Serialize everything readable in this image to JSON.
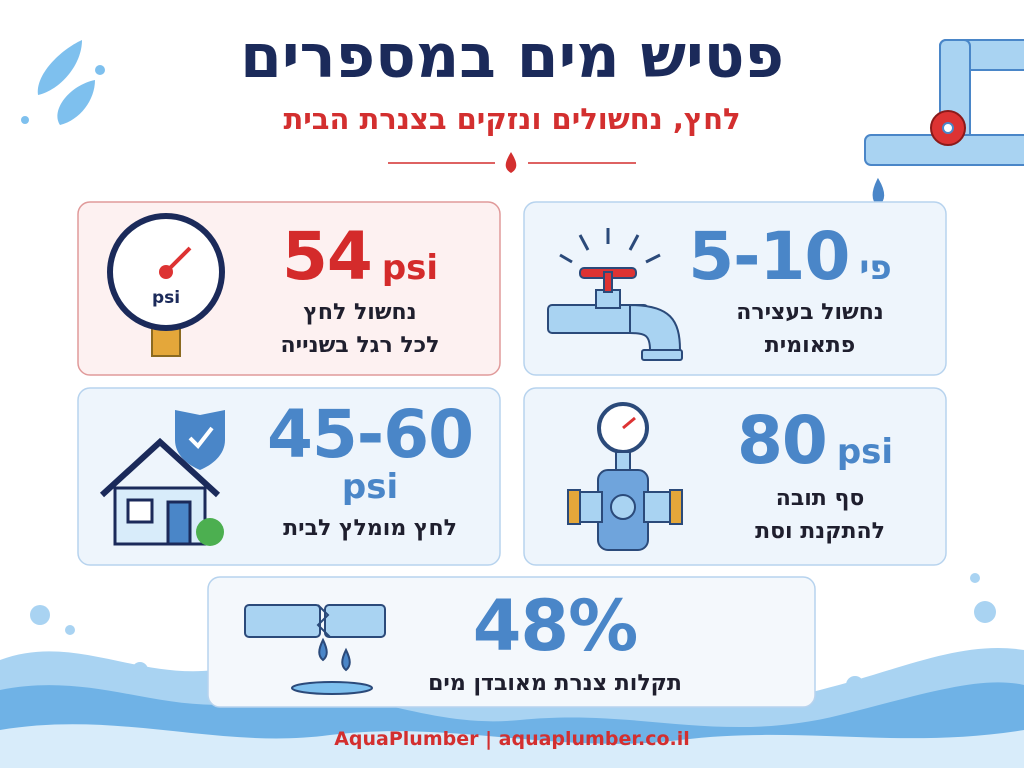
{
  "header": {
    "title": "פטיש מים במספרים",
    "subtitle": "לחץ, נחשולים ונזקים בצנרת הבית"
  },
  "cards": [
    {
      "value": "5-10",
      "qualifier": "פי",
      "lines": [
        "נחשול בעצירה",
        "פתאומית"
      ]
    },
    {
      "value": "54",
      "qualifier": "psi",
      "lines": [
        "נחשול לחץ",
        "לכל רגל בשנייה"
      ],
      "icon_label": "psi"
    },
    {
      "value": "80",
      "qualifier": "psi",
      "lines": [
        "סף תובה",
        "להתקנת וסת"
      ]
    },
    {
      "value": "45-60",
      "qualifier": "psi",
      "lines": [
        "לחץ מומלץ לבית"
      ]
    },
    {
      "value": "48%",
      "lines": [
        "תקלות צנרת מאובדן מים"
      ]
    }
  ],
  "footer": "AquaPlumber | aquaplumber.co.il"
}
